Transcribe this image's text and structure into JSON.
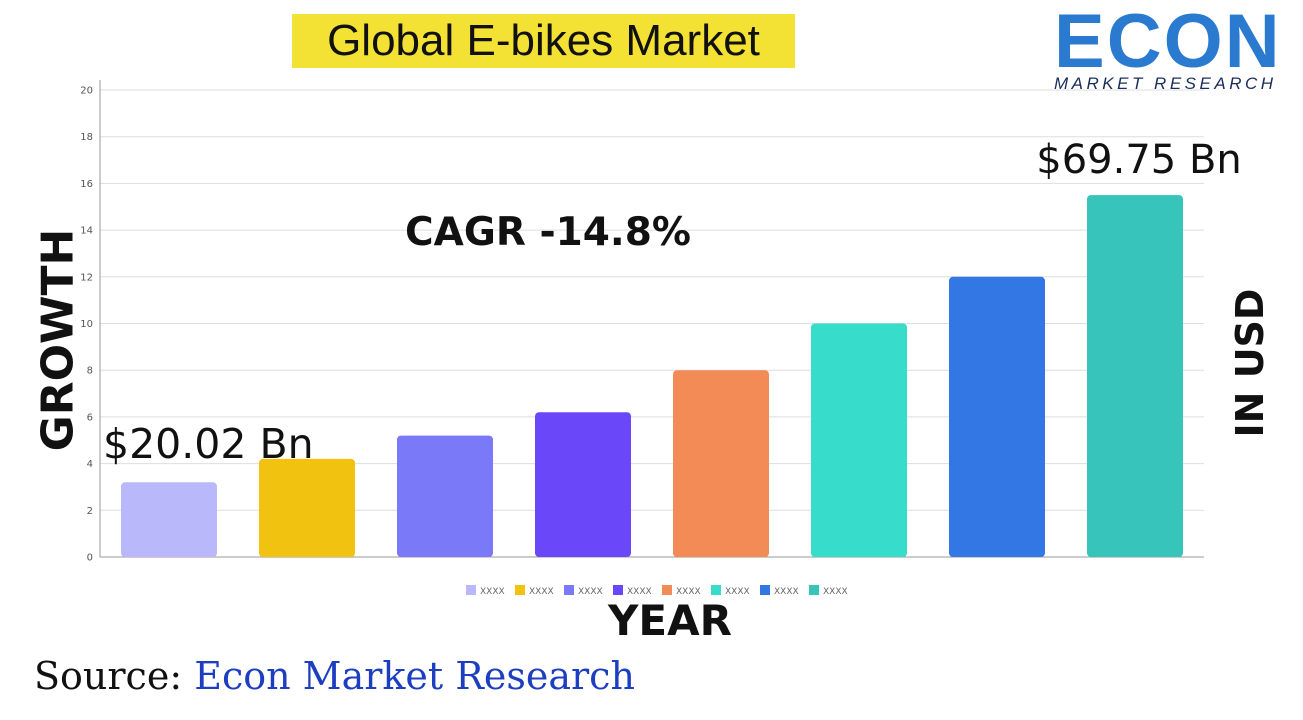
{
  "title": "Global E-bikes Market",
  "logo": {
    "word": "ECON",
    "subtitle": "MARKET RESEARCH",
    "color": "#2a7bd0"
  },
  "source": {
    "label": "Source: ",
    "name": "Econ Market Research"
  },
  "chart_data": {
    "type": "bar",
    "title": "Global E-bikes Market",
    "xlabel": "YEAR",
    "ylabel": "GROWTH",
    "ylabel_right": "IN USD",
    "categories": [
      "XXXX",
      "XXXX",
      "XXXX",
      "XXXX",
      "XXXX",
      "XXXX",
      "XXXX",
      "XXXX"
    ],
    "values": [
      3.2,
      4.2,
      5.2,
      6.2,
      8,
      10,
      12,
      15.5
    ],
    "colors": [
      "#b8b8fb",
      "#f2c211",
      "#7a7af8",
      "#6a48f9",
      "#f38b56",
      "#37dccb",
      "#3277e3",
      "#36c4bb"
    ],
    "ylim": [
      0,
      20
    ],
    "yticks": [
      0,
      2,
      4,
      6,
      8,
      10,
      12,
      14,
      16,
      18,
      20
    ],
    "grid": true,
    "legend": "bottom",
    "annotations": [
      {
        "text": "$20.02 Bn",
        "anchor": "first-bar"
      },
      {
        "text": "CAGR -14.8%",
        "anchor": "plot-center"
      },
      {
        "text": "$69.75 Bn",
        "anchor": "last-bar"
      }
    ]
  }
}
